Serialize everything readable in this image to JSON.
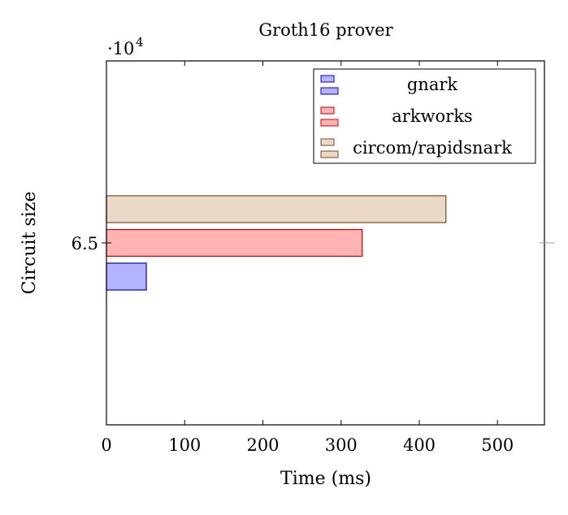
{
  "chart_data": {
    "type": "bar",
    "orientation": "horizontal",
    "title": "Groth16 prover",
    "xlabel": "Time (ms)",
    "ylabel": "Circuit size",
    "y_scale_label": "·10",
    "y_scale_exponent": "4",
    "categories": [
      "6.5"
    ],
    "category_values": [
      65000
    ],
    "xlim": [
      0,
      560
    ],
    "x_ticks": [
      "0",
      "100",
      "200",
      "300",
      "400",
      "500"
    ],
    "x_tick_values": [
      0,
      100,
      200,
      300,
      400,
      500
    ],
    "legend_position": "top-right",
    "grid": false,
    "series": [
      {
        "name": "gnark",
        "values": [
          51
        ],
        "fill": "#b3b3ff",
        "stroke": "#0000cc"
      },
      {
        "name": "arkworks",
        "values": [
          327
        ],
        "fill": "#ffb3b3",
        "stroke": "#cc0000"
      },
      {
        "name": "circom/rapidsnark",
        "values": [
          434
        ],
        "fill": "#ead9c7",
        "stroke": "#7a4b21"
      }
    ]
  }
}
